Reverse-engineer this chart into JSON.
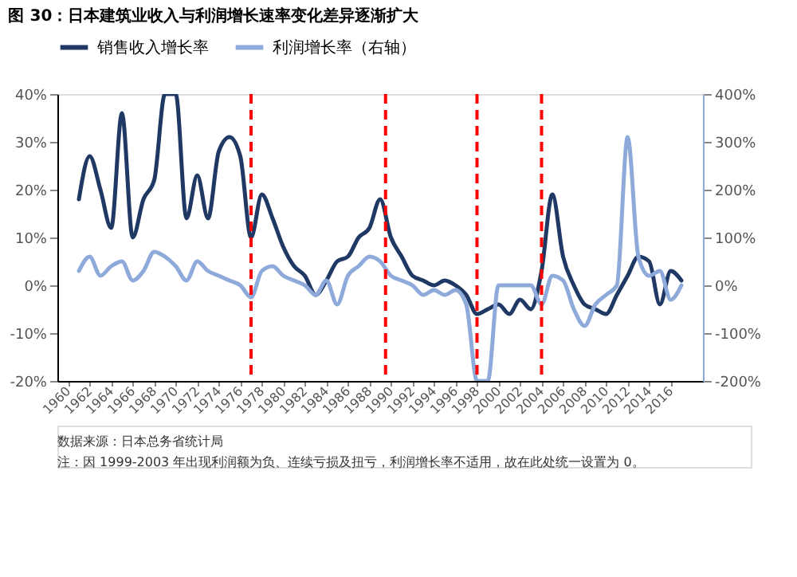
{
  "chart_data": {
    "type": "line",
    "title": "图 30：日本建筑业收入与利润增长速率变化差异逐渐扩大",
    "annotations": [
      "数据来源：日本总务省统计局",
      "注：因 1999-2003 年出现利润额为负、连续亏损及扭亏，利润增长率不适用，故在此处统一设置为 0。"
    ],
    "x": [
      1961,
      1962,
      1963,
      1964,
      1965,
      1966,
      1967,
      1968,
      1969,
      1970,
      1971,
      1972,
      1973,
      1974,
      1975,
      1976,
      1977,
      1978,
      1979,
      1980,
      1981,
      1982,
      1983,
      1984,
      1985,
      1986,
      1987,
      1988,
      1989,
      1990,
      1991,
      1992,
      1993,
      1994,
      1995,
      1996,
      1997,
      1998,
      1999,
      2000,
      2001,
      2002,
      2003,
      2004,
      2005,
      2006,
      2007,
      2008,
      2009,
      2010,
      2011,
      2012,
      2013,
      2014,
      2015,
      2016,
      2017
    ],
    "series": [
      {
        "name": "销售收入增长率",
        "color": "#1f3864",
        "values": [
          18,
          27,
          20,
          12,
          36,
          10,
          18,
          22,
          40,
          40,
          14,
          23,
          14,
          28,
          31,
          27,
          10,
          19,
          14,
          8,
          4,
          2,
          -2,
          1,
          5,
          6,
          10,
          12,
          18,
          10,
          6,
          2,
          1,
          0,
          1,
          0,
          -2,
          -6,
          -5,
          -4,
          -6,
          -3,
          -5,
          3,
          19,
          6,
          0,
          -4,
          -5,
          -6,
          -2,
          2,
          6,
          5,
          -4,
          3,
          1
        ]
      },
      {
        "name": "利润增长率（右轴）",
        "color": "#8eaadb",
        "axis": "y2",
        "values": [
          30,
          60,
          20,
          40,
          50,
          10,
          30,
          70,
          60,
          40,
          10,
          50,
          30,
          20,
          10,
          0,
          -25,
          30,
          40,
          20,
          10,
          0,
          -20,
          10,
          -40,
          20,
          40,
          60,
          50,
          20,
          10,
          0,
          -20,
          -10,
          -20,
          -10,
          -40,
          -200,
          -200,
          0,
          0,
          0,
          0,
          -40,
          20,
          10,
          -50,
          -85,
          -40,
          -20,
          0,
          310,
          60,
          20,
          30,
          -30,
          0
        ]
      }
    ],
    "xlim": [
      1959,
      2019
    ],
    "xticks": [
      1960,
      1962,
      1964,
      1966,
      1968,
      1970,
      1972,
      1974,
      1976,
      1978,
      1980,
      1982,
      1984,
      1986,
      1988,
      1990,
      1992,
      1994,
      1996,
      1998,
      2000,
      2002,
      2004,
      2006,
      2008,
      2010,
      2012,
      2014,
      2016
    ],
    "ylim": [
      -20,
      40
    ],
    "yticks": [
      {
        "value": -20,
        "label": "-20%"
      },
      {
        "value": -10,
        "label": "-10%"
      },
      {
        "value": 0,
        "label": "0%"
      },
      {
        "value": 10,
        "label": "10%"
      },
      {
        "value": 20,
        "label": "20%"
      },
      {
        "value": 30,
        "label": "30%"
      },
      {
        "value": 40,
        "label": "40%"
      }
    ],
    "y2lim": [
      -200,
      400
    ],
    "y2ticks": [
      {
        "value": -200,
        "label": "-200%"
      },
      {
        "value": -100,
        "label": "-100%"
      },
      {
        "value": 0,
        "label": "0%"
      },
      {
        "value": 100,
        "label": "100%"
      },
      {
        "value": 200,
        "label": "200%"
      },
      {
        "value": 300,
        "label": "300%"
      },
      {
        "value": 400,
        "label": "400%"
      }
    ],
    "ref_lines": [
      {
        "axis": "x",
        "value": 1977,
        "color": "#ff0000",
        "line_style": "dashed"
      },
      {
        "axis": "x",
        "value": 1989.5,
        "color": "#ff0000",
        "line_style": "dashed"
      },
      {
        "axis": "x",
        "value": 1998,
        "color": "#ff0000",
        "line_style": "dashed"
      },
      {
        "axis": "x",
        "value": 2004,
        "color": "#ff0000",
        "line_style": "dashed"
      }
    ],
    "grid": false,
    "legend": "top",
    "marker": "none",
    "line_style": "solid"
  }
}
